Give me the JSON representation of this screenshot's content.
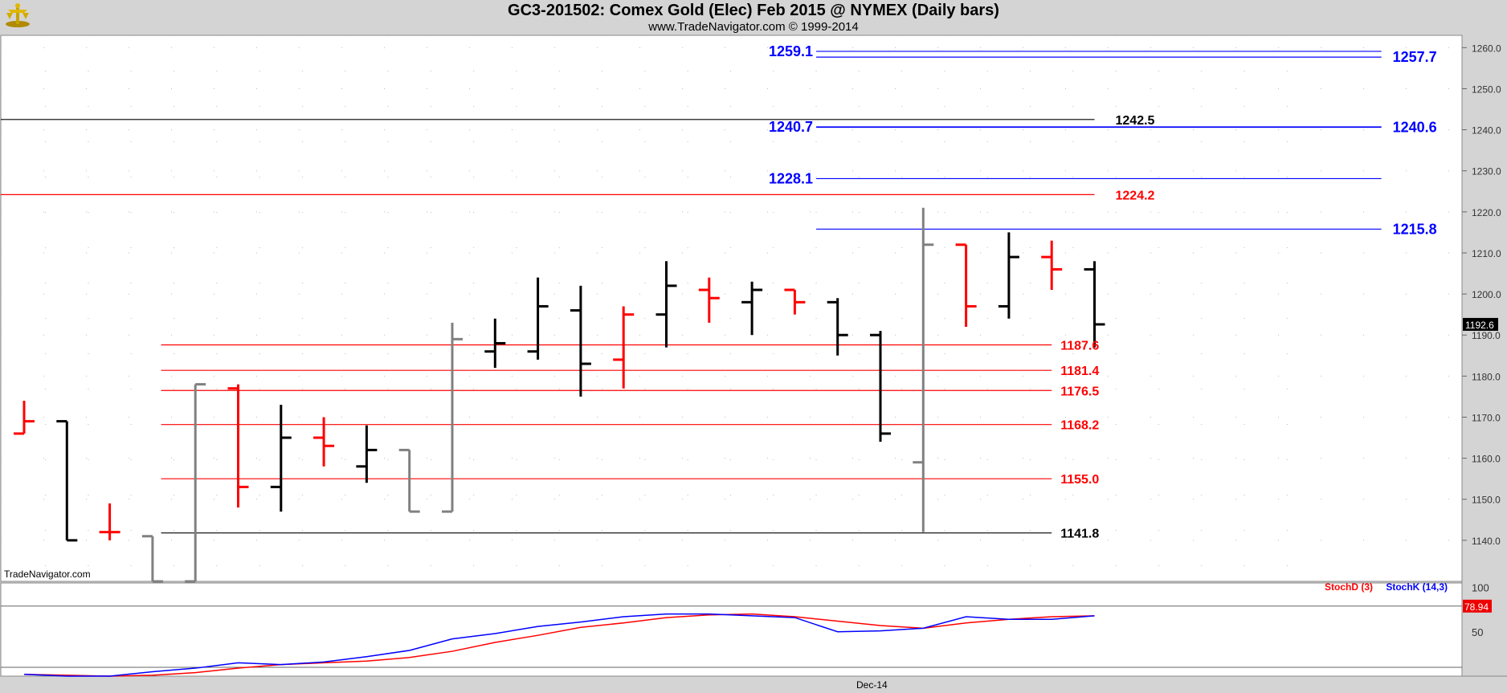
{
  "header": {
    "title": "GC3-201502:  Comex Gold (Elec) Feb 2015 @ NYMEX  (Daily bars)",
    "subtitle": "www.TradeNavigator.com © 1999-2014"
  },
  "watermark": "TradeNavigator.com",
  "colors": {
    "up": "#000000",
    "down": "#ff0000",
    "neutral": "#808080",
    "blue": "#0000ff",
    "first_tick_green": "#00cc00"
  },
  "chart_data": [
    {
      "type": "ohlc",
      "title": "GC3-201502:  Comex Gold (Elec) Feb 2015 @ NYMEX  (Daily bars)",
      "ylim": [
        1130,
        1263
      ],
      "yticks": [
        "1140.0",
        "1150.0",
        "1160.0",
        "1170.0",
        "1180.0",
        "1190.0",
        "1200.0",
        "1210.0",
        "1220.0",
        "1230.0",
        "1240.0",
        "1250.0",
        "1260.0"
      ],
      "xlabel_ticks": [
        {
          "label": "Dec-14",
          "index": 19
        }
      ],
      "last_price_label": "1192.6",
      "bars": [
        {
          "o": 1166,
          "h": 1174,
          "l": 1166,
          "c": 1169,
          "color": "down"
        },
        {
          "o": 1169,
          "h": 1169,
          "l": 1140,
          "c": 1140,
          "color": "up"
        },
        {
          "o": 1142,
          "h": 1149,
          "l": 1140,
          "c": 1142,
          "color": "down"
        },
        {
          "o": 1141,
          "h": 1141,
          "l": 1130,
          "c": 1130,
          "color": "neutral"
        },
        {
          "o": 1130,
          "h": 1178,
          "l": 1130,
          "c": 1178,
          "color": "neutral"
        },
        {
          "o": 1177,
          "h": 1178,
          "l": 1148,
          "c": 1153,
          "color": "down"
        },
        {
          "o": 1153,
          "h": 1173,
          "l": 1147,
          "c": 1165,
          "color": "up"
        },
        {
          "o": 1165,
          "h": 1170,
          "l": 1158,
          "c": 1163,
          "color": "down"
        },
        {
          "o": 1158,
          "h": 1168,
          "l": 1154,
          "c": 1162,
          "color": "up"
        },
        {
          "o": 1162,
          "h": 1162,
          "l": 1147,
          "c": 1147,
          "color": "neutral"
        },
        {
          "o": 1147,
          "h": 1193,
          "l": 1147,
          "c": 1189,
          "color": "neutral"
        },
        {
          "o": 1186,
          "h": 1194,
          "l": 1182,
          "c": 1188,
          "color": "up"
        },
        {
          "o": 1186,
          "h": 1204,
          "l": 1184,
          "c": 1197,
          "color": "up"
        },
        {
          "o": 1196,
          "h": 1202,
          "l": 1175,
          "c": 1183,
          "color": "up"
        },
        {
          "o": 1184,
          "h": 1197,
          "l": 1177,
          "c": 1195,
          "color": "down"
        },
        {
          "o": 1195,
          "h": 1208,
          "l": 1187,
          "c": 1202,
          "color": "up"
        },
        {
          "o": 1201,
          "h": 1204,
          "l": 1193,
          "c": 1199,
          "color": "down"
        },
        {
          "o": 1198,
          "h": 1203,
          "l": 1190,
          "c": 1201,
          "color": "up"
        },
        {
          "o": 1201,
          "h": 1201,
          "l": 1195,
          "c": 1198,
          "color": "down"
        },
        {
          "o": 1198,
          "h": 1199,
          "l": 1185,
          "c": 1190,
          "color": "up"
        },
        {
          "o": 1190,
          "h": 1191,
          "l": 1164,
          "c": 1166,
          "color": "up"
        },
        {
          "o": 1159,
          "h": 1221,
          "l": 1142,
          "c": 1212,
          "color": "neutral"
        },
        {
          "o": 1212,
          "h": 1212,
          "l": 1192,
          "c": 1197,
          "color": "down"
        },
        {
          "o": 1197,
          "h": 1215,
          "l": 1194,
          "c": 1209,
          "color": "up"
        },
        {
          "o": 1209,
          "h": 1213,
          "l": 1201,
          "c": 1206,
          "color": "down"
        },
        {
          "o": 1206,
          "h": 1208,
          "l": 1187,
          "c": 1192.6,
          "color": "up"
        }
      ],
      "levels": [
        {
          "value": 1259.1,
          "label": "1259.1",
          "side": "left",
          "color": "blue",
          "from": 18.5,
          "to": 31.7
        },
        {
          "value": 1257.7,
          "label": "1257.7",
          "side": "right",
          "color": "blue",
          "from": 18.5,
          "to": 31.7
        },
        {
          "value": 1242.5,
          "label": "1242.5",
          "side": "right-mid",
          "color": "up",
          "from": -0.8,
          "to": 25.0
        },
        {
          "value": 1240.7,
          "label": "1240.7",
          "side": "left",
          "color": "blue",
          "from": 18.5,
          "to": 31.7
        },
        {
          "value": 1240.6,
          "label": "1240.6",
          "side": "right",
          "color": "blue",
          "from": 18.5,
          "to": 31.7
        },
        {
          "value": 1228.1,
          "label": "1228.1",
          "side": "left",
          "color": "blue",
          "from": 18.5,
          "to": 31.7
        },
        {
          "value": 1224.2,
          "label": "1224.2",
          "side": "right-mid",
          "color": "down",
          "from": -0.8,
          "to": 25.0
        },
        {
          "value": 1215.8,
          "label": "1215.8",
          "side": "right",
          "color": "blue",
          "from": 18.5,
          "to": 31.7
        },
        {
          "value": 1187.6,
          "label": "1187.6",
          "side": "right-low",
          "color": "down",
          "from": 3.2,
          "to": 24.0
        },
        {
          "value": 1181.4,
          "label": "1181.4",
          "side": "right-low",
          "color": "down",
          "from": 3.2,
          "to": 24.0
        },
        {
          "value": 1176.5,
          "label": "1176.5",
          "side": "right-low",
          "color": "down",
          "from": 3.2,
          "to": 24.0
        },
        {
          "value": 1168.2,
          "label": "1168.2",
          "side": "right-low",
          "color": "down",
          "from": 3.2,
          "to": 24.0
        },
        {
          "value": 1155.0,
          "label": "1155.0",
          "side": "right-low",
          "color": "down",
          "from": 3.2,
          "to": 24.0
        },
        {
          "value": 1141.8,
          "label": "1141.8",
          "side": "right-low",
          "color": "up",
          "from": 3.2,
          "to": 24.0
        }
      ]
    },
    {
      "type": "line",
      "title": "",
      "ylim": [
        0,
        105
      ],
      "yticks": [
        "50",
        "100"
      ],
      "reference_line": 78.94,
      "last_value_label": "78.94",
      "series": [
        {
          "name": "StochD (3)",
          "color": "#ff0000",
          "values": [
            2,
            1,
            0,
            1,
            4,
            9,
            13,
            15,
            17,
            21,
            28,
            38,
            46,
            55,
            60,
            66,
            69,
            70,
            67,
            62,
            57,
            54,
            60,
            64,
            67,
            68
          ]
        },
        {
          "name": "StochK (14,3)",
          "color": "#0000ff",
          "values": [
            2,
            0,
            0,
            5,
            9,
            15,
            13,
            16,
            22,
            29,
            42,
            48,
            56,
            61,
            67,
            70,
            70,
            68,
            66,
            50,
            51,
            54,
            67,
            64,
            64,
            68
          ]
        }
      ]
    }
  ]
}
